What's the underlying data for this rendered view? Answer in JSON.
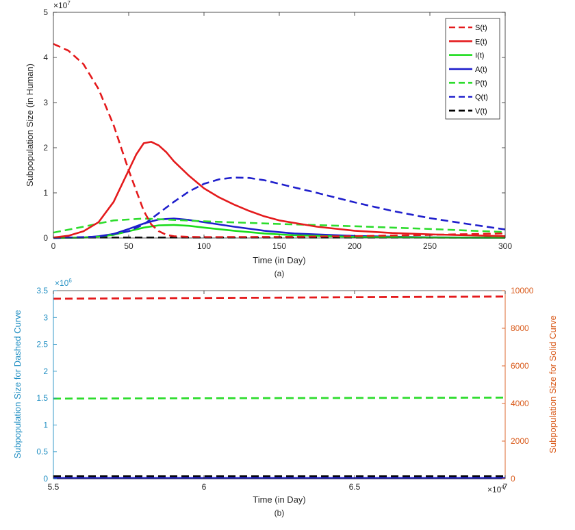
{
  "chart_data": [
    {
      "type": "line",
      "panel_label": "(a)",
      "xlabel": "Time (in Day)",
      "ylabel": "Subpopulation Size (in Human)",
      "xlim": [
        0,
        300
      ],
      "ylim": [
        0,
        50000000
      ],
      "x_ticks": [
        0,
        50,
        100,
        150,
        200,
        250,
        300
      ],
      "x_tick_labels": [
        "0",
        "50",
        "100",
        "150",
        "200",
        "250",
        "300"
      ],
      "y_ticks": [
        0,
        10000000,
        20000000,
        30000000,
        40000000,
        50000000
      ],
      "y_tick_labels": [
        "0",
        "1",
        "2",
        "3",
        "4",
        "5"
      ],
      "y_exponent": {
        "base": "×10",
        "power": "7"
      },
      "grid": false,
      "legend_position": "top-right",
      "series": [
        {
          "name": "S(t)",
          "color": "#e41a1c",
          "style": "dashed",
          "x": [
            0,
            10,
            20,
            30,
            40,
            45,
            50,
            55,
            60,
            65,
            70,
            75,
            80,
            90,
            100,
            150,
            200,
            250,
            300
          ],
          "y": [
            43000000,
            41500000,
            38500000,
            33000000,
            25000000,
            20000000,
            15000000,
            10500000,
            6000000,
            3000000,
            1500000,
            700000,
            400000,
            250000,
            200000,
            250000,
            400000,
            700000,
            1000000
          ]
        },
        {
          "name": "E(t)",
          "color": "#e41a1c",
          "style": "solid",
          "x": [
            0,
            10,
            20,
            30,
            40,
            45,
            50,
            55,
            60,
            65,
            70,
            75,
            80,
            90,
            100,
            110,
            120,
            130,
            140,
            150,
            175,
            200,
            225,
            250,
            275,
            300
          ],
          "y": [
            100000,
            500000,
            1500000,
            3500000,
            8000000,
            11500000,
            15000000,
            18500000,
            21000000,
            21300000,
            20500000,
            19000000,
            17000000,
            13800000,
            11000000,
            9000000,
            7400000,
            6000000,
            4800000,
            3900000,
            2500000,
            1600000,
            1100000,
            800000,
            600000,
            400000
          ]
        },
        {
          "name": "I(t)",
          "color": "#1adc1a",
          "style": "solid",
          "x": [
            0,
            20,
            30,
            40,
            50,
            60,
            70,
            80,
            90,
            100,
            120,
            140,
            160,
            200,
            250,
            300
          ],
          "y": [
            0,
            100000,
            300000,
            700000,
            1500000,
            2300000,
            2800000,
            2900000,
            2700000,
            2300000,
            1600000,
            1000000,
            600000,
            250000,
            100000,
            50000
          ]
        },
        {
          "name": "A(t)",
          "color": "#1f1fcc",
          "style": "solid",
          "x": [
            0,
            20,
            30,
            40,
            50,
            60,
            70,
            80,
            90,
            100,
            120,
            140,
            160,
            200,
            250,
            300
          ],
          "y": [
            0,
            100000,
            400000,
            900000,
            2000000,
            3200000,
            4100000,
            4300000,
            4000000,
            3500000,
            2500000,
            1600000,
            1000000,
            450000,
            150000,
            50000
          ]
        },
        {
          "name": "P(t)",
          "color": "#2ddc2d",
          "style": "dashed",
          "x": [
            0,
            20,
            40,
            60,
            80,
            100,
            150,
            200,
            250,
            300
          ],
          "y": [
            1200000,
            2500000,
            3900000,
            4300000,
            4000000,
            3700000,
            3100000,
            2600000,
            2000000,
            1300000
          ]
        },
        {
          "name": "Q(t)",
          "color": "#1f1fcc",
          "style": "dashed",
          "x": [
            0,
            30,
            50,
            60,
            70,
            80,
            90,
            100,
            110,
            120,
            130,
            140,
            150,
            175,
            200,
            225,
            250,
            275,
            300
          ],
          "y": [
            0,
            300000,
            1500000,
            3000000,
            5500000,
            8000000,
            10300000,
            12000000,
            13000000,
            13400000,
            13300000,
            12800000,
            12000000,
            10000000,
            7900000,
            6000000,
            4400000,
            3100000,
            1900000
          ]
        },
        {
          "name": "V(t)",
          "color": "#000000",
          "style": "dashed",
          "x": [
            0,
            300
          ],
          "y": [
            100000,
            100000
          ]
        }
      ]
    },
    {
      "type": "line",
      "panel_label": "(b)",
      "xlabel": "Time (in Day)",
      "ylabel_left": "Subpopulation Size for Dashed Curve",
      "ylabel_right": "Subpopulation Size for Solid Curve",
      "xlim": [
        55000,
        70000
      ],
      "ylim_left": [
        0,
        3500000
      ],
      "ylim_right": [
        0,
        10000
      ],
      "x_ticks": [
        55000,
        60000,
        65000,
        70000
      ],
      "x_tick_labels": [
        "5.5",
        "6",
        "6.5",
        "7"
      ],
      "x_exponent": {
        "base": "×10",
        "power": "4"
      },
      "y_left_ticks": [
        0,
        500000,
        1000000,
        1500000,
        2000000,
        2500000,
        3000000,
        3500000
      ],
      "y_left_tick_labels": [
        "0",
        "0.5",
        "1",
        "1.5",
        "2",
        "2.5",
        "3",
        "3.5"
      ],
      "y_left_exponent": {
        "base": "×10",
        "power": "6"
      },
      "y_right_ticks": [
        0,
        2000,
        4000,
        6000,
        8000,
        10000
      ],
      "y_right_tick_labels": [
        "0",
        "2000",
        "4000",
        "6000",
        "8000",
        "10000"
      ],
      "left_axis_color": "#1f8ec2",
      "right_axis_color": "#d95a1a",
      "grid": false,
      "series": [
        {
          "color": "#e41a1c",
          "style": "dashed",
          "axis": "left",
          "x": [
            55000,
            70000
          ],
          "y": [
            3350000,
            3390000
          ]
        },
        {
          "color": "#2ddc2d",
          "style": "dashed",
          "axis": "left",
          "x": [
            55000,
            70000
          ],
          "y": [
            1490000,
            1510000
          ]
        },
        {
          "color": "#000000",
          "style": "dashed",
          "axis": "left",
          "x": [
            55000,
            70000
          ],
          "y": [
            45000,
            45000
          ]
        },
        {
          "color": "#1f1fcc",
          "style": "solid",
          "axis": "right",
          "x": [
            55000,
            70000
          ],
          "y": [
            30,
            30
          ]
        }
      ]
    }
  ]
}
